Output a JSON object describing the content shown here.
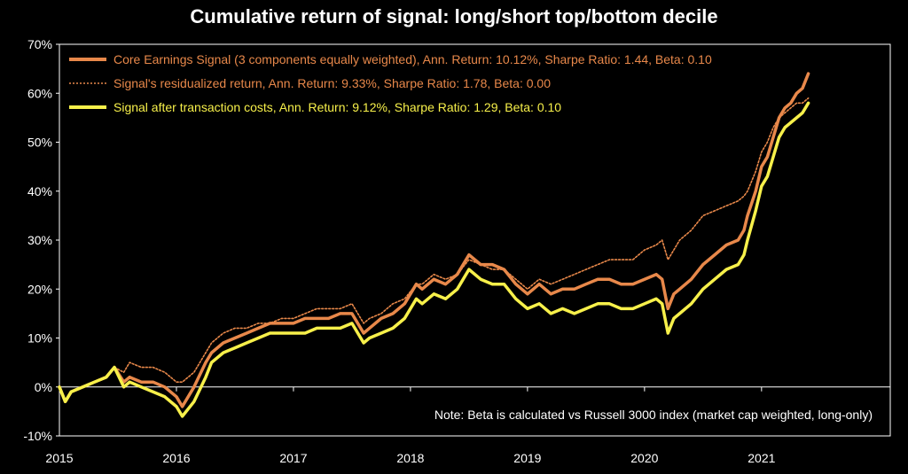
{
  "chart_data": {
    "type": "line",
    "title": "Cumulative return of signal: long/short top/bottom decile",
    "xlabel": "",
    "ylabel": "",
    "xlim": [
      2015,
      2022.1
    ],
    "ylim": [
      -10,
      70
    ],
    "x_ticks": [
      "2015",
      "2016",
      "2017",
      "2018",
      "2019",
      "2020",
      "2021"
    ],
    "y_ticks": [
      "-10%",
      "0%",
      "10%",
      "20%",
      "30%",
      "40%",
      "50%",
      "60%",
      "70%"
    ],
    "grid": false,
    "legend_position": "top-left",
    "note": "Note: Beta is calculated vs Russell 3000 index (market cap weighted, long-only)",
    "series": [
      {
        "name": "Core Earnings Signal (3 components equally weighted), Ann. Return: 10.12%, Sharpe Ratio: 1.44, Beta: 0.10",
        "color": "#E8884A",
        "style": "thick",
        "x": [
          2015.0,
          2015.05,
          2015.1,
          2015.2,
          2015.3,
          2015.4,
          2015.47,
          2015.55,
          2015.6,
          2015.7,
          2015.8,
          2015.9,
          2016.0,
          2016.05,
          2016.15,
          2016.25,
          2016.3,
          2016.4,
          2016.5,
          2016.6,
          2016.7,
          2016.8,
          2016.9,
          2017.0,
          2017.1,
          2017.2,
          2017.3,
          2017.4,
          2017.5,
          2017.6,
          2017.65,
          2017.75,
          2017.85,
          2017.95,
          2018.05,
          2018.1,
          2018.2,
          2018.3,
          2018.4,
          2018.5,
          2018.6,
          2018.7,
          2018.8,
          2018.9,
          2019.0,
          2019.1,
          2019.2,
          2019.3,
          2019.4,
          2019.5,
          2019.6,
          2019.7,
          2019.8,
          2019.9,
          2020.0,
          2020.1,
          2020.15,
          2020.2,
          2020.25,
          2020.3,
          2020.4,
          2020.5,
          2020.6,
          2020.7,
          2020.8,
          2020.85,
          2020.88,
          2020.95,
          2021.0,
          2021.05,
          2021.1,
          2021.15,
          2021.2,
          2021.25,
          2021.3,
          2021.35,
          2021.4
        ],
        "y": [
          0,
          -3,
          -1,
          0,
          1,
          2,
          4,
          1,
          2,
          1,
          1,
          0,
          -2,
          -4,
          0,
          5,
          7,
          9,
          10,
          11,
          12,
          13,
          13,
          13,
          14,
          14,
          14,
          15,
          15,
          11,
          12,
          14,
          15,
          17,
          21,
          20,
          22,
          21,
          23,
          27,
          25,
          25,
          24,
          21,
          19,
          21,
          19,
          20,
          20,
          21,
          22,
          22,
          21,
          21,
          22,
          23,
          22,
          16,
          19,
          20,
          22,
          25,
          27,
          29,
          30,
          32,
          35,
          40,
          45,
          47,
          51,
          55,
          57,
          58,
          60,
          61,
          64
        ]
      },
      {
        "name": "Signal's residualized return, Ann. Return: 9.33%, Sharpe Ratio: 1.78, Beta: 0.00",
        "color": "#E8884A",
        "style": "dotted",
        "x": [
          2015.0,
          2015.05,
          2015.1,
          2015.2,
          2015.3,
          2015.4,
          2015.47,
          2015.55,
          2015.6,
          2015.7,
          2015.8,
          2015.9,
          2016.0,
          2016.05,
          2016.15,
          2016.25,
          2016.3,
          2016.4,
          2016.5,
          2016.6,
          2016.7,
          2016.8,
          2016.9,
          2017.0,
          2017.1,
          2017.2,
          2017.3,
          2017.4,
          2017.5,
          2017.6,
          2017.65,
          2017.75,
          2017.85,
          2017.95,
          2018.05,
          2018.1,
          2018.2,
          2018.3,
          2018.4,
          2018.5,
          2018.6,
          2018.7,
          2018.8,
          2018.9,
          2019.0,
          2019.1,
          2019.2,
          2019.3,
          2019.4,
          2019.5,
          2019.6,
          2019.7,
          2019.8,
          2019.9,
          2020.0,
          2020.1,
          2020.15,
          2020.2,
          2020.25,
          2020.3,
          2020.4,
          2020.5,
          2020.6,
          2020.7,
          2020.8,
          2020.85,
          2020.88,
          2020.95,
          2021.0,
          2021.05,
          2021.1,
          2021.15,
          2021.2,
          2021.25,
          2021.3,
          2021.35,
          2021.4
        ],
        "y": [
          0,
          -3,
          -1,
          0,
          1,
          2,
          4,
          3,
          5,
          4,
          4,
          3,
          1,
          1,
          3,
          7,
          9,
          11,
          12,
          12,
          13,
          13,
          14,
          14,
          15,
          16,
          16,
          16,
          17,
          13,
          14,
          15,
          17,
          18,
          21,
          21,
          23,
          22,
          23,
          26,
          25,
          24,
          24,
          22,
          20,
          22,
          21,
          22,
          23,
          24,
          25,
          26,
          26,
          26,
          28,
          29,
          30,
          26,
          28,
          30,
          32,
          35,
          36,
          37,
          38,
          39,
          40,
          44,
          48,
          50,
          53,
          55,
          56,
          57,
          58,
          58,
          59
        ]
      },
      {
        "name": "Signal after transaction costs, Ann. Return: 9.12%, Sharpe Ratio: 1.29, Beta: 0.10",
        "color": "#F7F04A",
        "style": "thick",
        "x": [
          2015.0,
          2015.05,
          2015.1,
          2015.2,
          2015.3,
          2015.4,
          2015.47,
          2015.55,
          2015.6,
          2015.7,
          2015.8,
          2015.9,
          2016.0,
          2016.05,
          2016.15,
          2016.25,
          2016.3,
          2016.4,
          2016.5,
          2016.6,
          2016.7,
          2016.8,
          2016.9,
          2017.0,
          2017.1,
          2017.2,
          2017.3,
          2017.4,
          2017.5,
          2017.6,
          2017.65,
          2017.75,
          2017.85,
          2017.95,
          2018.05,
          2018.1,
          2018.2,
          2018.3,
          2018.4,
          2018.5,
          2018.6,
          2018.7,
          2018.8,
          2018.9,
          2019.0,
          2019.1,
          2019.2,
          2019.3,
          2019.4,
          2019.5,
          2019.6,
          2019.7,
          2019.8,
          2019.9,
          2020.0,
          2020.1,
          2020.15,
          2020.2,
          2020.25,
          2020.3,
          2020.4,
          2020.5,
          2020.6,
          2020.7,
          2020.8,
          2020.85,
          2020.88,
          2020.95,
          2021.0,
          2021.05,
          2021.1,
          2021.15,
          2021.2,
          2021.25,
          2021.3,
          2021.35,
          2021.4
        ],
        "y": [
          0,
          -3,
          -1,
          0,
          1,
          2,
          4,
          0,
          1,
          0,
          -1,
          -2,
          -4,
          -6,
          -3,
          2,
          5,
          7,
          8,
          9,
          10,
          11,
          11,
          11,
          11,
          12,
          12,
          12,
          13,
          9,
          10,
          11,
          12,
          14,
          18,
          17,
          19,
          18,
          20,
          24,
          22,
          21,
          21,
          18,
          16,
          17,
          15,
          16,
          15,
          16,
          17,
          17,
          16,
          16,
          17,
          18,
          17,
          11,
          14,
          15,
          17,
          20,
          22,
          24,
          25,
          27,
          30,
          36,
          41,
          43,
          47,
          51,
          53,
          54,
          55,
          56,
          58
        ]
      }
    ]
  }
}
